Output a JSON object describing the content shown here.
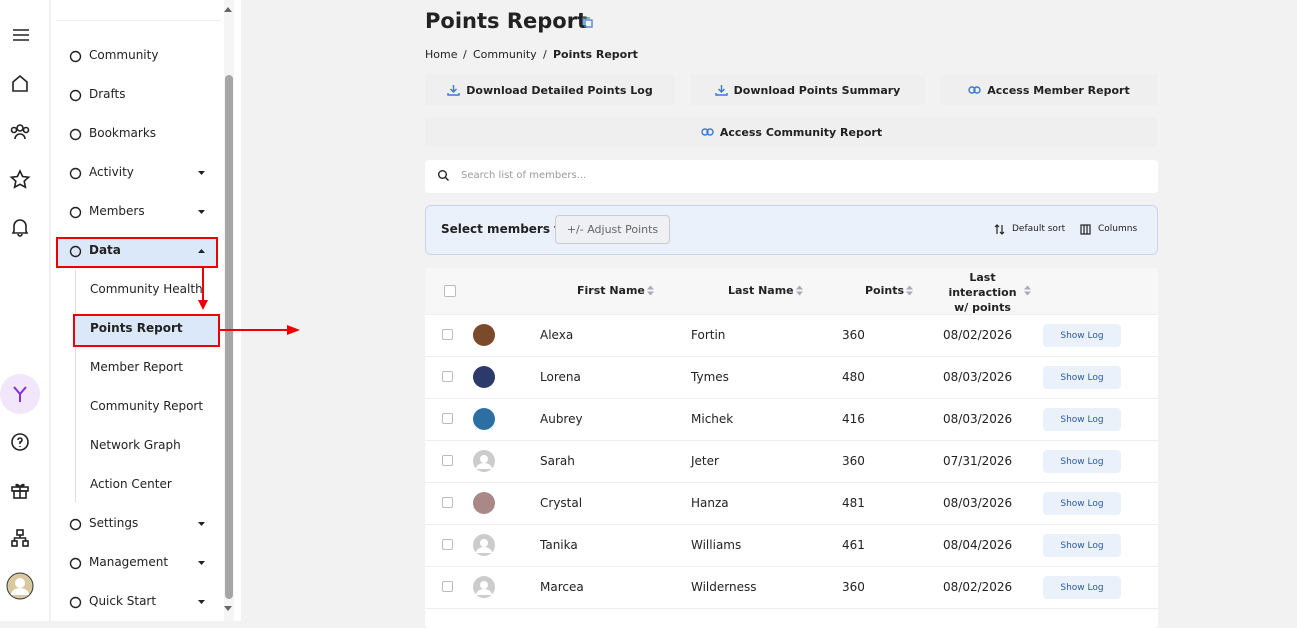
{
  "sidebar": {
    "items": [
      "Community",
      "Drafts",
      "Bookmarks",
      "Activity",
      "Members",
      "Data"
    ],
    "data_submenu": [
      "Community Health",
      "Points Report",
      "Member Report",
      "Community Report",
      "Network Graph",
      "Action Center"
    ],
    "items_after": [
      "Settings",
      "Management",
      "Quick Start"
    ]
  },
  "header": {
    "title": "Points Report"
  },
  "breadcrumb": {
    "items": [
      "Home",
      "Community",
      "Points Report"
    ],
    "separator": "/"
  },
  "actions": [
    "Download Detailed Points Log",
    "Download Points Summary",
    "Access Member Report",
    "Access Community Report"
  ],
  "search": {
    "placeholder": "Search list of members..."
  },
  "toolbar": {
    "label": "Select members to:",
    "adjust_button": "+/- Adjust Points",
    "sort": "Default sort",
    "columns": "Columns"
  },
  "table": {
    "headers": [
      "First Name",
      "Last Name",
      "Points",
      "Last interaction w/ points"
    ],
    "rows": [
      [
        "Alexa",
        "Fortin",
        360,
        "08/02/2026"
      ],
      [
        "Lorena",
        "Tymes",
        480,
        "08/03/2026"
      ],
      [
        "Aubrey",
        "Michek",
        416,
        "08/03/2026"
      ],
      [
        "Sarah",
        "Jeter",
        360,
        "07/31/2026"
      ],
      [
        "Crystal",
        "Hanza",
        481,
        "08/03/2026"
      ],
      [
        "Tanika",
        "Williams",
        461,
        "08/04/2026"
      ],
      [
        "Marcea",
        "Wilderness",
        360,
        "08/02/2026"
      ]
    ],
    "action": "Show Log"
  }
}
